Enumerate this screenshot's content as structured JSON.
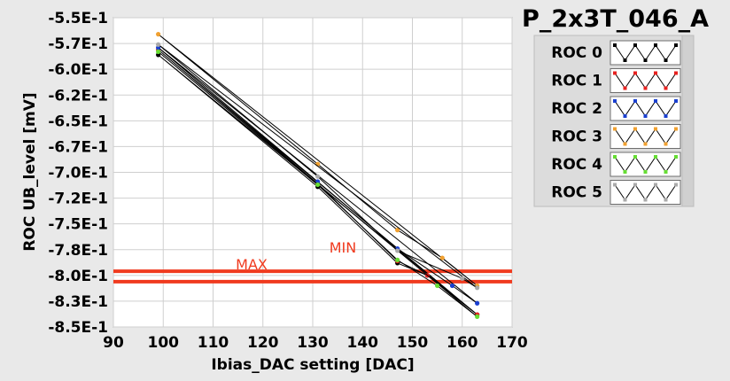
{
  "chart_data": {
    "type": "line",
    "title": "P_2x3T_046_A",
    "xlabel": "Ibias_DAC setting [DAC]",
    "ylabel": "ROC UB_level [mV]",
    "xlim": [
      90,
      170
    ],
    "ylim": [
      -0.85,
      -0.55
    ],
    "x_ticks": [
      90,
      100,
      110,
      120,
      130,
      140,
      150,
      160,
      170
    ],
    "x_tick_labels": [
      "90",
      "100",
      "110",
      "120",
      "130",
      "140",
      "150",
      "160",
      "170"
    ],
    "y_ticks": [
      -0.55,
      -0.575,
      -0.6,
      -0.625,
      -0.65,
      -0.675,
      -0.7,
      -0.725,
      -0.75,
      -0.775,
      -0.8,
      -0.825,
      -0.85
    ],
    "y_tick_labels": [
      "-5.5E-1",
      "-5.7E-1",
      "-6.0E-1",
      "-6.2E-1",
      "-6.5E-1",
      "-6.7E-1",
      "-7.0E-1",
      "-7.2E-1",
      "-7.5E-1",
      "-7.8E-1",
      "-8.0E-1",
      "-8.3E-1",
      "-8.5E-1"
    ],
    "grid": true,
    "legend_position": "right",
    "reference_lines": [
      {
        "name": "MAX",
        "y": -0.796,
        "color": "#f03a1e"
      },
      {
        "name": "MIN",
        "y": -0.806,
        "color": "#f03a1e"
      }
    ],
    "series": [
      {
        "name": "ROC 0",
        "color": "#000000",
        "x": [
          99,
          131,
          147,
          153,
          163,
          99,
          131,
          147,
          153,
          163,
          99,
          131,
          147,
          153,
          163
        ],
        "y": [
          -0.586,
          -0.714,
          -0.788,
          -0.8,
          -0.838,
          -0.586,
          -0.714,
          -0.788,
          -0.8,
          -0.838,
          -0.586,
          -0.714,
          -0.788,
          -0.8,
          -0.838
        ]
      },
      {
        "name": "ROC 1",
        "color": "#e8211f",
        "x": [
          99,
          131,
          147,
          153,
          163,
          99,
          131,
          147,
          153,
          163,
          99,
          131,
          147,
          153,
          163
        ],
        "y": [
          -0.581,
          -0.711,
          -0.786,
          -0.8,
          -0.838,
          -0.581,
          -0.711,
          -0.786,
          -0.8,
          -0.838,
          -0.581,
          -0.711,
          -0.786,
          -0.8,
          -0.838
        ]
      },
      {
        "name": "ROC 2",
        "color": "#1a3fcf",
        "x": [
          99,
          131,
          147,
          158,
          163,
          99,
          131,
          147,
          158,
          163,
          99,
          131,
          147,
          158,
          163
        ],
        "y": [
          -0.579,
          -0.709,
          -0.774,
          -0.81,
          -0.827,
          -0.579,
          -0.709,
          -0.774,
          -0.81,
          -0.827,
          -0.579,
          -0.709,
          -0.774,
          -0.81,
          -0.827
        ]
      },
      {
        "name": "ROC 3",
        "color": "#f0a030",
        "x": [
          99,
          131,
          147,
          156,
          163,
          99,
          131,
          147,
          156,
          163,
          99,
          131,
          147,
          156,
          163
        ],
        "y": [
          -0.566,
          -0.692,
          -0.756,
          -0.783,
          -0.81,
          -0.566,
          -0.692,
          -0.756,
          -0.783,
          -0.81,
          -0.566,
          -0.692,
          -0.756,
          -0.783,
          -0.81
        ]
      },
      {
        "name": "ROC 4",
        "color": "#66dd33",
        "x": [
          99,
          131,
          147,
          155,
          163,
          99,
          131,
          147,
          155,
          163,
          99,
          131,
          147,
          155,
          163
        ],
        "y": [
          -0.583,
          -0.712,
          -0.785,
          -0.81,
          -0.84,
          -0.583,
          -0.712,
          -0.785,
          -0.81,
          -0.84,
          -0.583,
          -0.712,
          -0.785,
          -0.81,
          -0.84
        ]
      },
      {
        "name": "ROC 5",
        "color": "#aaaaaa",
        "x": [
          99,
          131,
          147,
          160,
          163,
          99,
          131,
          147,
          160,
          163,
          99,
          131,
          147,
          160,
          163
        ],
        "y": [
          -0.576,
          -0.704,
          -0.776,
          -0.803,
          -0.812,
          -0.576,
          -0.704,
          -0.776,
          -0.803,
          -0.812,
          -0.576,
          -0.704,
          -0.776,
          -0.803,
          -0.812
        ]
      }
    ]
  }
}
